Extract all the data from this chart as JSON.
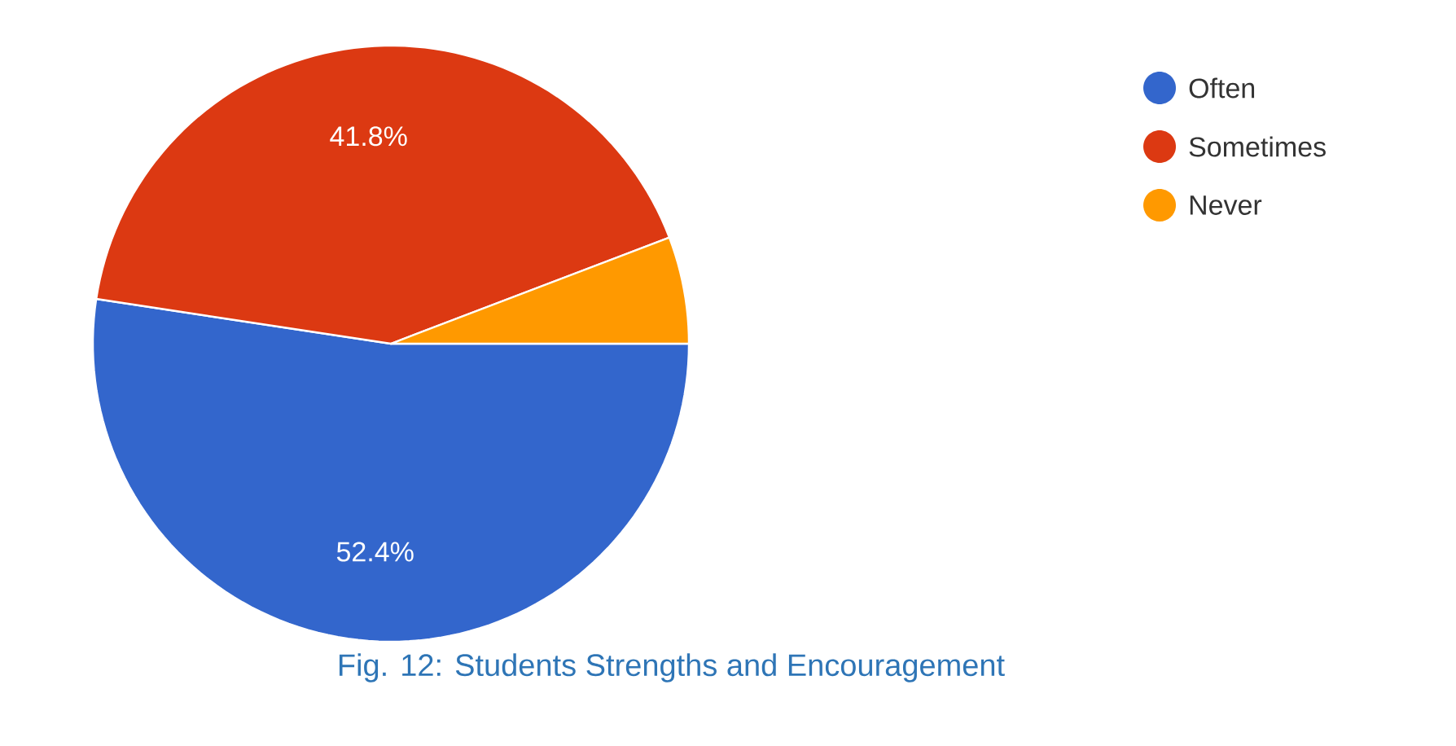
{
  "chart_data": {
    "type": "pie",
    "categories": [
      "Often",
      "Sometimes",
      "Never"
    ],
    "values": [
      52.4,
      41.8,
      5.8
    ],
    "colors": [
      "#3366cc",
      "#dc3912",
      "#ff9900"
    ],
    "value_labels": [
      "52.4%",
      "41.8%",
      null
    ],
    "legend": "top right",
    "annotations": [
      "Fig. 12:  Students Strengths and Encouragement"
    ]
  }
}
